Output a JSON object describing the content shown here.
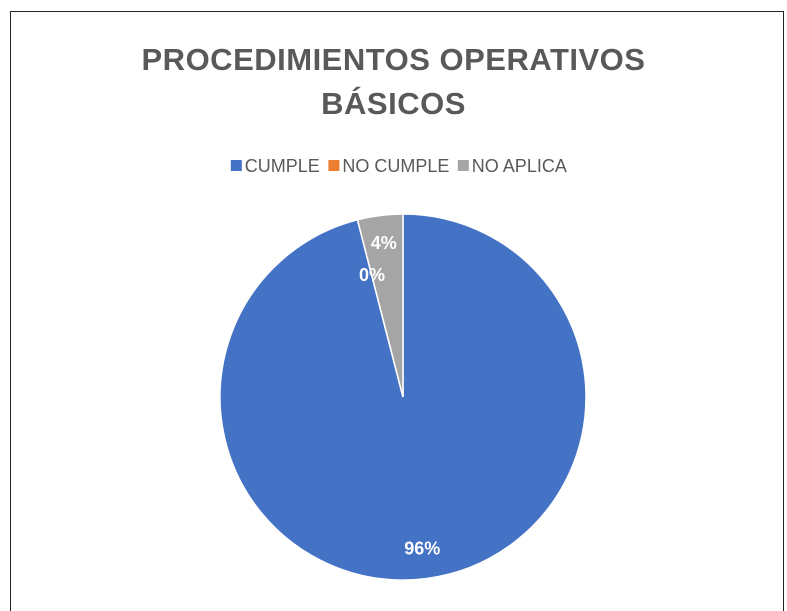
{
  "chart_data": {
    "type": "pie",
    "title": "PROCEDIMIENTOS OPERATIVOS BÁSICOS",
    "categories": [
      "CUMPLE",
      "NO CUMPLE",
      "NO APLICA"
    ],
    "values": [
      96,
      0,
      4
    ],
    "value_labels": [
      "96%",
      "0%",
      "4%"
    ],
    "colors": [
      "#4472c4",
      "#ed7d31",
      "#a5a5a5"
    ],
    "legend": "top"
  }
}
